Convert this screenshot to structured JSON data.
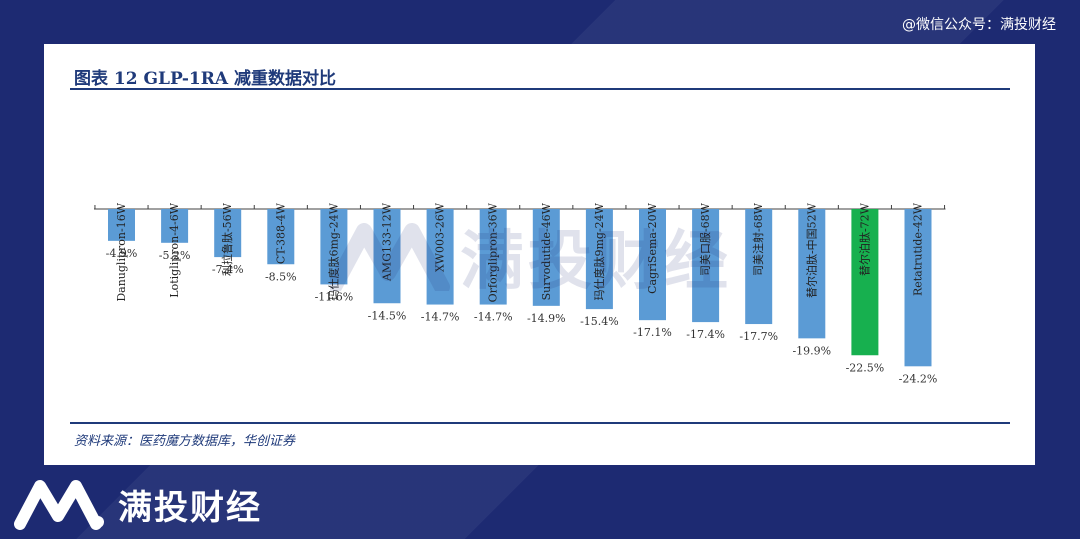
{
  "header": {
    "account_label": "@微信公众号：满投财经"
  },
  "figure": {
    "title": "图表 12   GLP-1RA 减重数据对比",
    "source": "资料来源：医药魔方数据库，华创证券"
  },
  "brand": {
    "name": "满投财经"
  },
  "watermark": {
    "text": "满投财经"
  },
  "chart_data": {
    "type": "bar",
    "categories": [
      "Danuglipron-16W",
      "Lotiglipron-4-6W",
      "利拉鲁肽-56W",
      "CT-388-4W",
      "玛仕度肽6mg-24W",
      "AMG133-12W",
      "XW003-26W",
      "Orforglipron-36W",
      "Survodutide-46W",
      "玛仕度肽9mg-24W",
      "CagriSema-20W",
      "司美口服-68W",
      "司美注射-68W",
      "替尔泊肽-中国52W",
      "替尔泊肽-72W",
      "Retatrutide-42W"
    ],
    "values": [
      -4.9,
      -5.2,
      -7.4,
      -8.5,
      -11.6,
      -14.5,
      -14.7,
      -14.7,
      -14.9,
      -15.4,
      -17.1,
      -17.4,
      -17.7,
      -19.9,
      -22.5,
      -24.2
    ],
    "value_labels": [
      "-4.9%",
      "-5.2%",
      "-7.4%",
      "-8.5%",
      "-11.6%",
      "-14.5%",
      "-14.7%",
      "-14.7%",
      "-14.9%",
      "-15.4%",
      "-17.1%",
      "-17.4%",
      "-17.7%",
      "-19.9%",
      "-22.5%",
      "-24.2%"
    ],
    "unit": "%",
    "ylim": [
      -25,
      0
    ],
    "highlight_index": 14,
    "colors": {
      "default": "#5b9bd5",
      "highlight": "#17b04f"
    },
    "grid": false,
    "legend": "none"
  }
}
